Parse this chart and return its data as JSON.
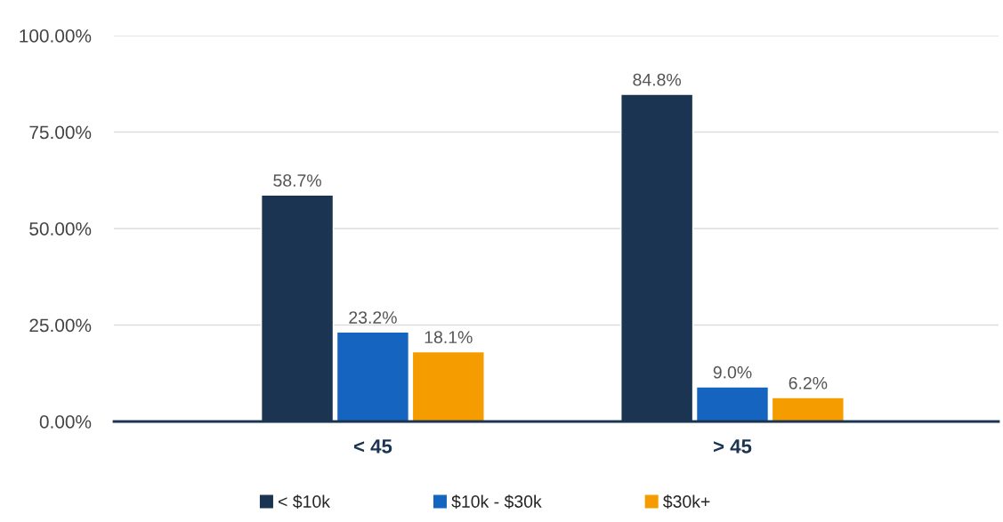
{
  "chart_data": {
    "type": "bar",
    "categories": [
      "< 45",
      "> 45"
    ],
    "series": [
      {
        "name": "< $10k",
        "color": "#1b3452",
        "values": [
          58.7,
          84.8
        ],
        "value_labels": [
          "58.7%",
          "84.8%"
        ]
      },
      {
        "name": "$10k - $30k",
        "color": "#1565c0",
        "values": [
          23.2,
          9.0
        ],
        "value_labels": [
          "23.2%",
          "9.0%"
        ]
      },
      {
        "name": "$30k+",
        "color": "#f59c00",
        "values": [
          18.1,
          6.2
        ],
        "value_labels": [
          "18.1%",
          "6.2%"
        ]
      }
    ],
    "ylim": [
      0,
      100
    ],
    "yticks": [
      {
        "value": 0,
        "label": "0.00%"
      },
      {
        "value": 25,
        "label": "25.00%"
      },
      {
        "value": 50,
        "label": "50.00%"
      },
      {
        "value": 75,
        "label": "75.00%"
      },
      {
        "value": 100,
        "label": "100.00%"
      }
    ],
    "grid": "y",
    "legend": "bottom"
  }
}
